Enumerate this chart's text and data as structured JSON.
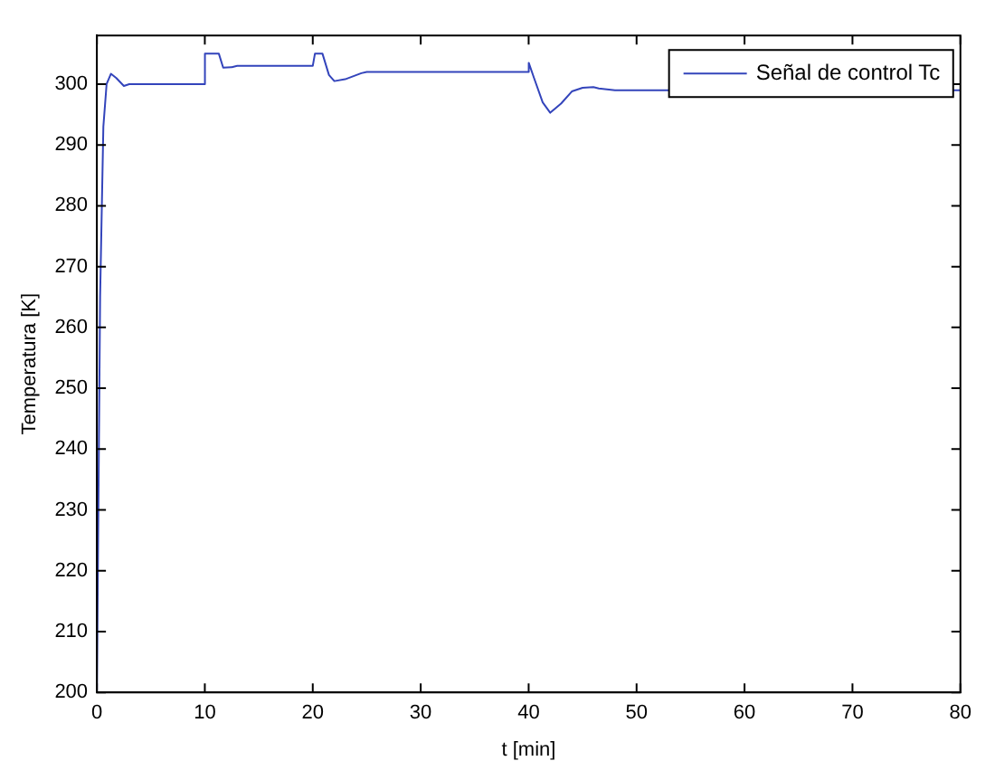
{
  "chart_data": {
    "type": "line",
    "xlabel": "t [min]",
    "ylabel": "Temperatura [K]",
    "xlim": [
      0,
      80
    ],
    "ylim": [
      200,
      308
    ],
    "xticks": [
      0,
      10,
      20,
      30,
      40,
      50,
      60,
      70,
      80
    ],
    "yticks": [
      200,
      210,
      220,
      230,
      240,
      250,
      260,
      270,
      280,
      290,
      300
    ],
    "grid": false,
    "legend": "top right",
    "marker": "none",
    "line_style": "solid",
    "series": [
      {
        "name": "Señal de control Tc",
        "color": "#3344bb",
        "x": [
          0,
          0.3,
          0.6,
          0.9,
          1.3,
          1.8,
          2.5,
          3,
          10,
          10.01,
          11.3,
          11.7,
          12.5,
          13,
          20,
          20.2,
          20.9,
          21.5,
          22,
          23,
          24.5,
          25,
          40,
          40.01,
          40.5,
          41.3,
          42,
          43,
          44,
          45,
          46,
          46.5,
          48,
          80
        ],
        "values": [
          200,
          265,
          293,
          300,
          301.7,
          301,
          299.7,
          300,
          300,
          305,
          305,
          302.7,
          302.8,
          303,
          303,
          305,
          305,
          301.5,
          300.5,
          300.8,
          301.8,
          302,
          302,
          303.5,
          301,
          297,
          295.3,
          296.8,
          298.8,
          299.4,
          299.5,
          299.3,
          299,
          299
        ]
      }
    ]
  }
}
